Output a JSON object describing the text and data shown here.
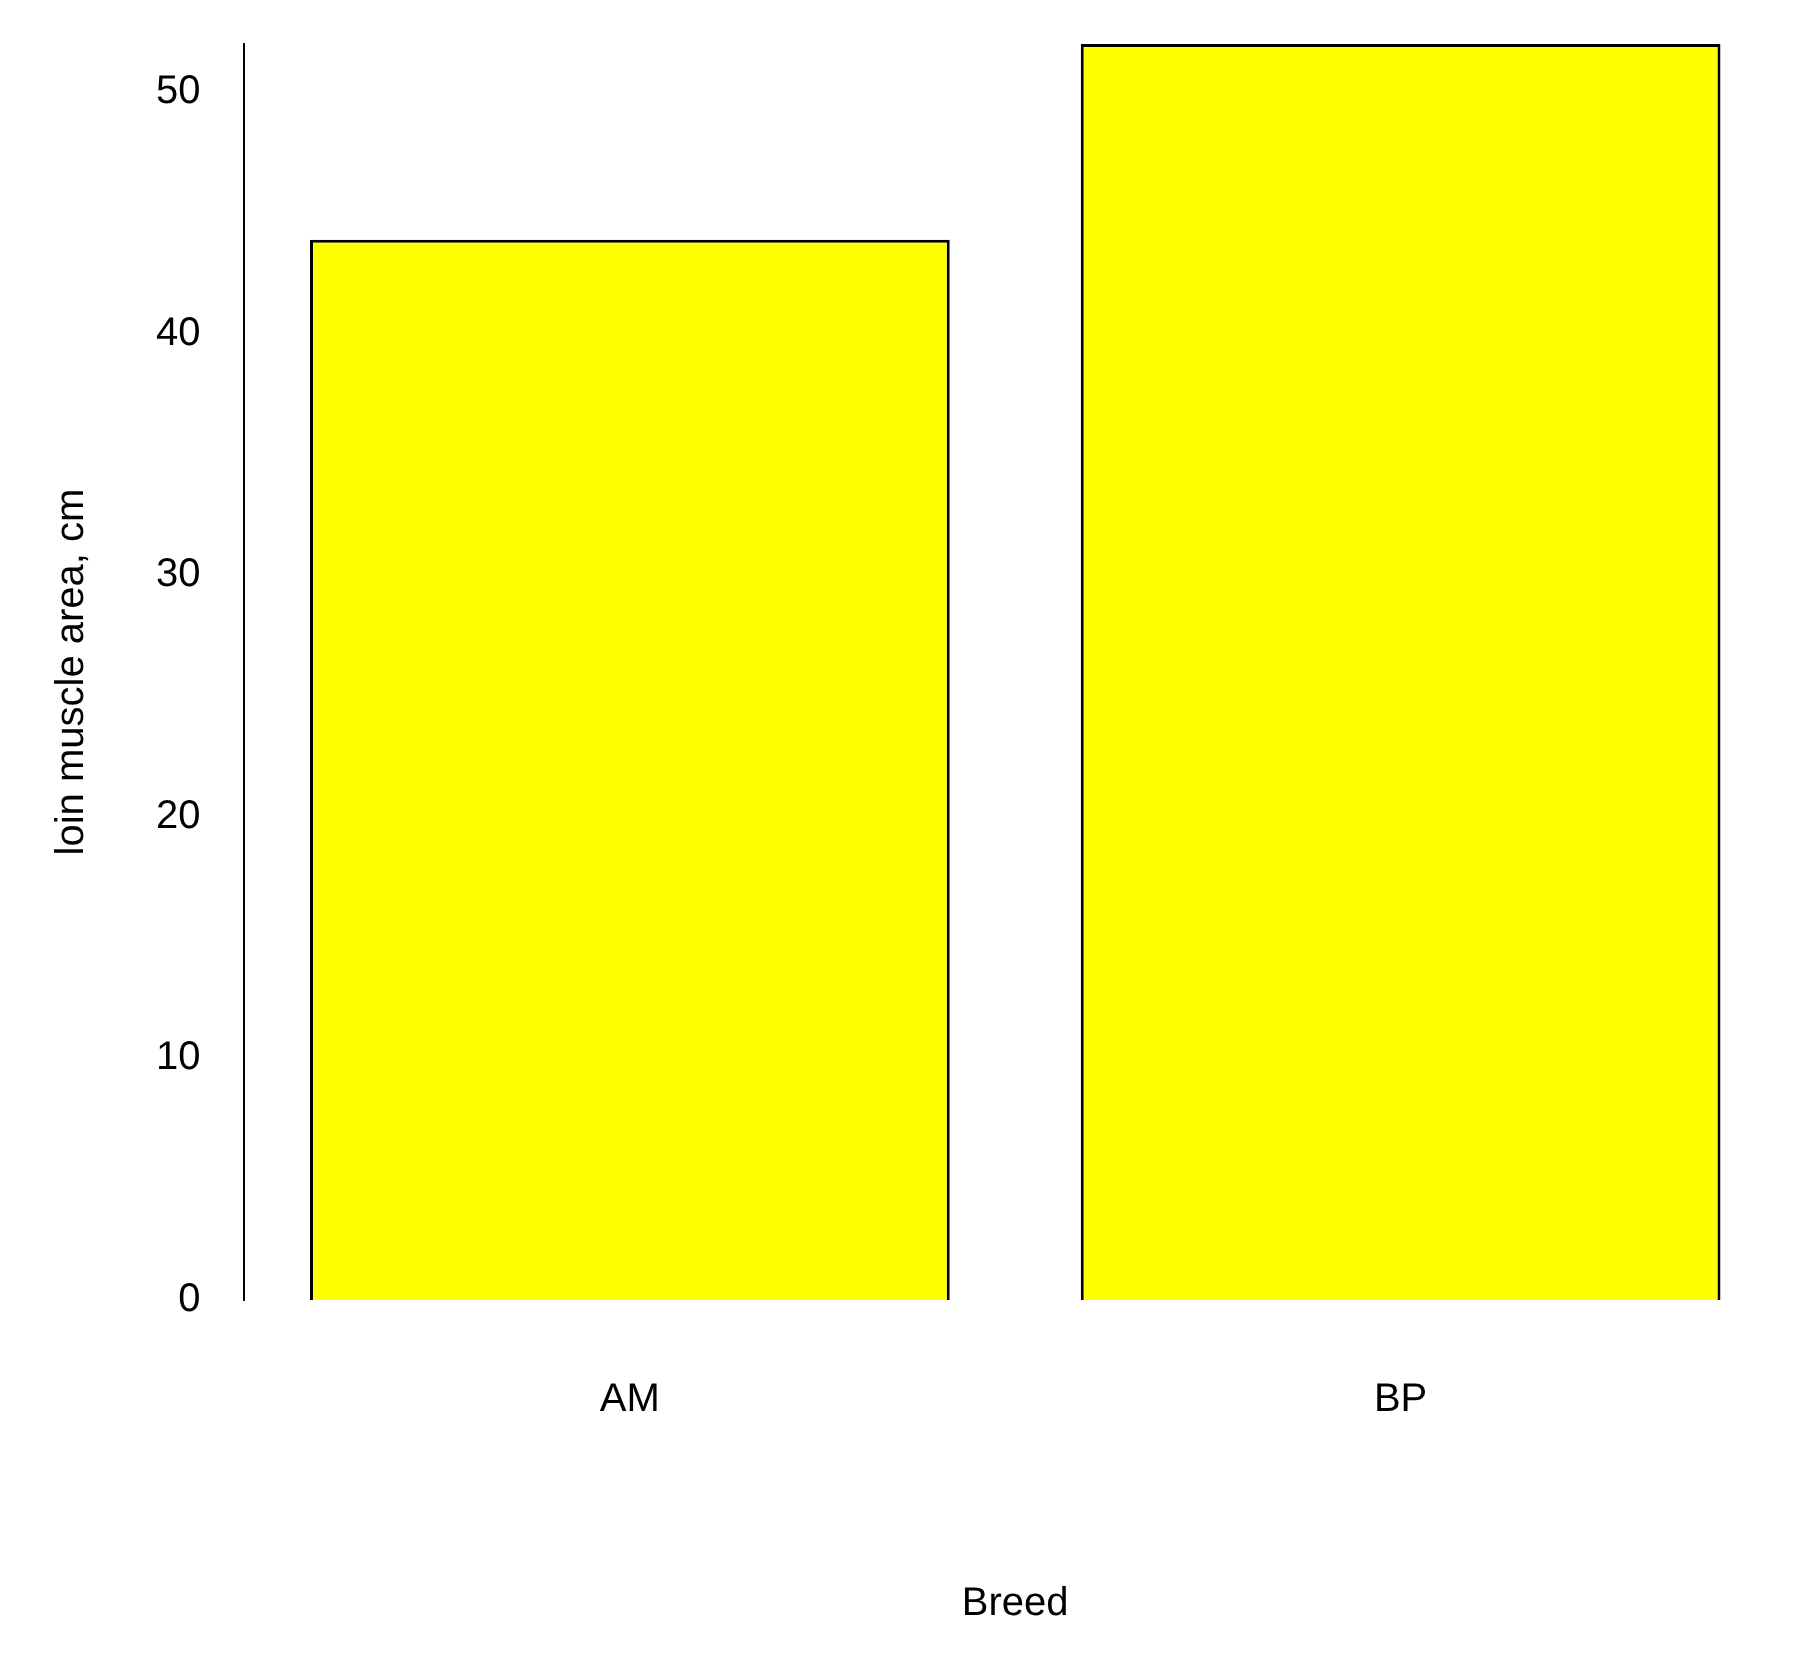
{
  "chart_data": {
    "type": "bar",
    "xlabel": "Breed",
    "ylabel": "loin muscle area, cm",
    "categories": [
      "AM",
      "BP"
    ],
    "values": [
      43.9,
      52
    ],
    "color": "#ffff00",
    "ylim": [
      0,
      52
    ],
    "yticks": [
      0,
      10,
      20,
      30,
      40,
      50
    ],
    "grid": false,
    "legend": false
  }
}
